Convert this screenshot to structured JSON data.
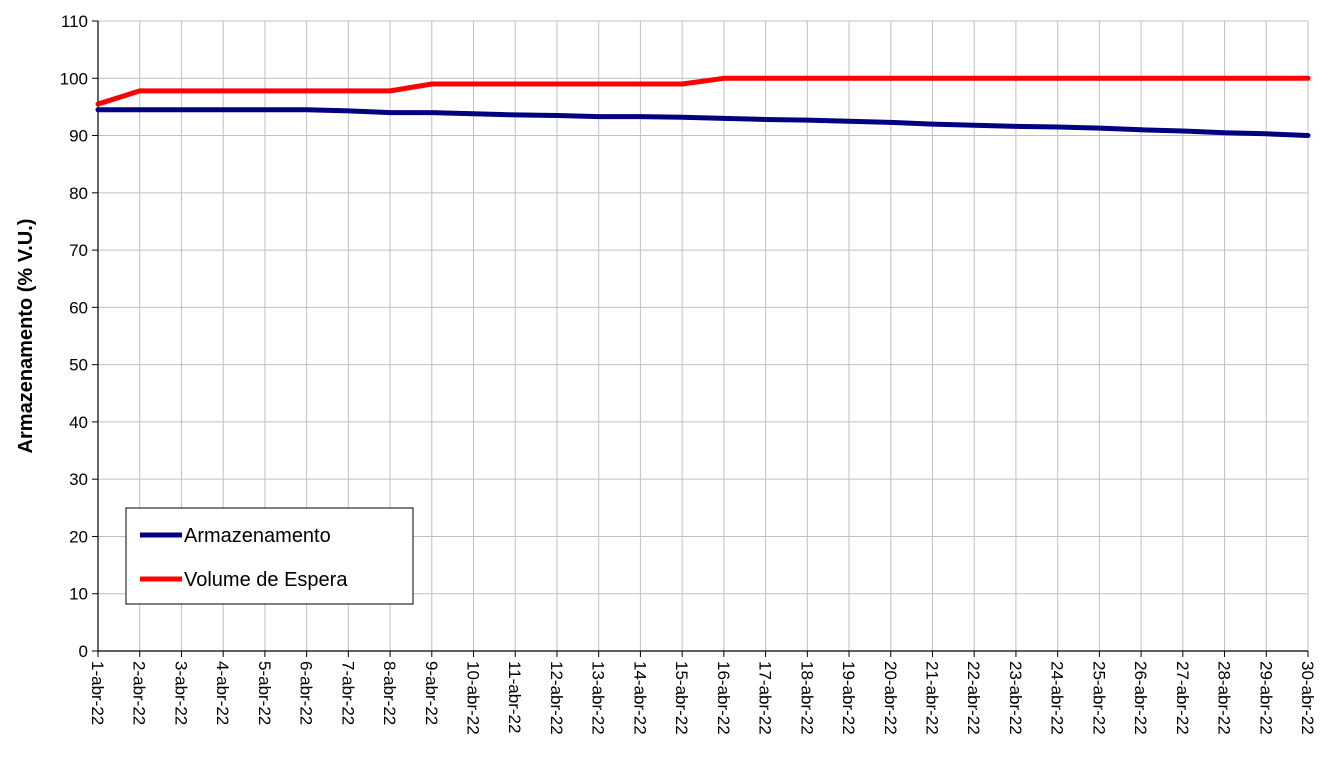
{
  "chart_data": {
    "type": "line",
    "title": "",
    "xlabel": "",
    "ylabel": "Armazenamento (% V.U.)",
    "ylim": [
      0,
      110
    ],
    "yticks": [
      0,
      10,
      20,
      30,
      40,
      50,
      60,
      70,
      80,
      90,
      100,
      110
    ],
    "grid": true,
    "legend_position": "bottom-left",
    "categories": [
      "1-abr-22",
      "2-abr-22",
      "3-abr-22",
      "4-abr-22",
      "5-abr-22",
      "6-abr-22",
      "7-abr-22",
      "8-abr-22",
      "9-abr-22",
      "10-abr-22",
      "11-abr-22",
      "12-abr-22",
      "13-abr-22",
      "14-abr-22",
      "15-abr-22",
      "16-abr-22",
      "17-abr-22",
      "18-abr-22",
      "19-abr-22",
      "20-abr-22",
      "21-abr-22",
      "22-abr-22",
      "23-abr-22",
      "24-abr-22",
      "25-abr-22",
      "26-abr-22",
      "27-abr-22",
      "28-abr-22",
      "29-abr-22",
      "30-abr-22"
    ],
    "series": [
      {
        "name": "Armazenamento",
        "color": "#000080",
        "values": [
          94.5,
          94.5,
          94.5,
          94.5,
          94.5,
          94.5,
          94.3,
          94.0,
          94.0,
          93.8,
          93.6,
          93.5,
          93.3,
          93.3,
          93.2,
          93.0,
          92.8,
          92.7,
          92.5,
          92.3,
          92.0,
          91.8,
          91.6,
          91.5,
          91.3,
          91.0,
          90.8,
          90.5,
          90.3,
          90.0
        ]
      },
      {
        "name": "Volume de Espera",
        "color": "#ff0000",
        "values": [
          95.5,
          97.8,
          97.8,
          97.8,
          97.8,
          97.8,
          97.8,
          97.8,
          99.0,
          99.0,
          99.0,
          99.0,
          99.0,
          99.0,
          99.0,
          100,
          100,
          100,
          100,
          100,
          100,
          100,
          100,
          100,
          100,
          100,
          100,
          100,
          100,
          100
        ]
      }
    ]
  }
}
